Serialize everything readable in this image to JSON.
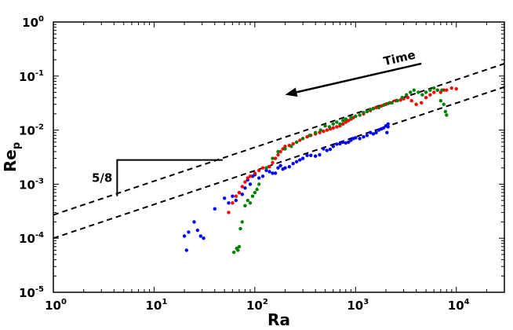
{
  "chart_data": {
    "type": "scatter",
    "title": "",
    "xlabel": "Ra",
    "ylabel_main": "Re",
    "ylabel_sub": "p",
    "xscale": "log",
    "yscale": "log",
    "xlim": [
      1,
      30000
    ],
    "ylim": [
      1e-05,
      1
    ],
    "grid": false,
    "x_ticks": [
      {
        "base": "10",
        "exp": "0",
        "value": 1
      },
      {
        "base": "10",
        "exp": "1",
        "value": 10
      },
      {
        "base": "10",
        "exp": "2",
        "value": 100
      },
      {
        "base": "10",
        "exp": "3",
        "value": 1000
      },
      {
        "base": "10",
        "exp": "4",
        "value": 10000
      }
    ],
    "y_ticks": [
      {
        "base": "10",
        "exp": "-5",
        "value": 1e-05
      },
      {
        "base": "10",
        "exp": "-4",
        "value": 0.0001
      },
      {
        "base": "10",
        "exp": "-3",
        "value": 0.001
      },
      {
        "base": "10",
        "exp": "-2",
        "value": 0.01
      },
      {
        "base": "10",
        "exp": "-1",
        "value": 0.1
      },
      {
        "base": "10",
        "exp": "0",
        "value": 1
      }
    ],
    "series": [
      {
        "color": "#0000ff",
        "points": [
          [
            21,
            6e-05
          ],
          [
            20,
            0.00011
          ],
          [
            22,
            0.00013
          ],
          [
            25,
            0.0002
          ],
          [
            27,
            0.00014
          ],
          [
            29,
            0.00011
          ],
          [
            31,
            0.0001
          ],
          [
            40,
            0.00035
          ],
          [
            50,
            0.00055
          ],
          [
            55,
            0.00045
          ],
          [
            60,
            0.0006
          ],
          [
            65,
            0.0005
          ],
          [
            70,
            0.0007
          ],
          [
            75,
            0.00065
          ],
          [
            80,
            0.00085
          ],
          [
            85,
            0.0012
          ],
          [
            90,
            0.001
          ],
          [
            95,
            0.0014
          ],
          [
            100,
            0.0015
          ],
          [
            110,
            0.0013
          ],
          [
            120,
            0.0014
          ],
          [
            130,
            0.0018
          ],
          [
            140,
            0.0017
          ],
          [
            150,
            0.0016
          ],
          [
            160,
            0.0016
          ],
          [
            170,
            0.002
          ],
          [
            180,
            0.0022
          ],
          [
            190,
            0.0019
          ],
          [
            200,
            0.002
          ],
          [
            220,
            0.0021
          ],
          [
            240,
            0.0024
          ],
          [
            260,
            0.0026
          ],
          [
            280,
            0.0028
          ],
          [
            300,
            0.003
          ],
          [
            330,
            0.0034
          ],
          [
            360,
            0.0034
          ],
          [
            400,
            0.0033
          ],
          [
            440,
            0.0035
          ],
          [
            480,
            0.0045
          ],
          [
            520,
            0.0042
          ],
          [
            560,
            0.0044
          ],
          [
            600,
            0.005
          ],
          [
            650,
            0.0055
          ],
          [
            700,
            0.0056
          ],
          [
            750,
            0.006
          ],
          [
            800,
            0.0058
          ],
          [
            850,
            0.006
          ],
          [
            900,
            0.0065
          ],
          [
            950,
            0.007
          ],
          [
            1000,
            0.0072
          ],
          [
            1100,
            0.007
          ],
          [
            1200,
            0.0075
          ],
          [
            1300,
            0.008
          ],
          [
            1400,
            0.009
          ],
          [
            1500,
            0.0085
          ],
          [
            1600,
            0.009
          ],
          [
            1700,
            0.01
          ],
          [
            1800,
            0.0105
          ],
          [
            1900,
            0.011
          ],
          [
            2000,
            0.012
          ],
          [
            2100,
            0.0115
          ],
          [
            2050,
            0.009
          ],
          [
            2100,
            0.013
          ]
        ]
      },
      {
        "color": "#ff0000",
        "points": [
          [
            55,
            0.0003
          ],
          [
            60,
            0.00045
          ],
          [
            65,
            0.0006
          ],
          [
            70,
            0.0007
          ],
          [
            75,
            0.0009
          ],
          [
            80,
            0.0011
          ],
          [
            85,
            0.0013
          ],
          [
            90,
            0.0014
          ],
          [
            100,
            0.0016
          ],
          [
            110,
            0.0018
          ],
          [
            120,
            0.002
          ],
          [
            130,
            0.002
          ],
          [
            140,
            0.0021
          ],
          [
            150,
            0.0025
          ],
          [
            160,
            0.003
          ],
          [
            170,
            0.0035
          ],
          [
            180,
            0.004
          ],
          [
            190,
            0.0045
          ],
          [
            200,
            0.005
          ],
          [
            220,
            0.0052
          ],
          [
            240,
            0.0056
          ],
          [
            260,
            0.006
          ],
          [
            280,
            0.0065
          ],
          [
            300,
            0.007
          ],
          [
            330,
            0.0075
          ],
          [
            360,
            0.008
          ],
          [
            400,
            0.0085
          ],
          [
            440,
            0.009
          ],
          [
            480,
            0.0095
          ],
          [
            520,
            0.01
          ],
          [
            560,
            0.0105
          ],
          [
            600,
            0.011
          ],
          [
            650,
            0.0115
          ],
          [
            700,
            0.012
          ],
          [
            750,
            0.013
          ],
          [
            800,
            0.014
          ],
          [
            850,
            0.015
          ],
          [
            900,
            0.016
          ],
          [
            950,
            0.017
          ],
          [
            1000,
            0.018
          ],
          [
            1100,
            0.019
          ],
          [
            1200,
            0.02
          ],
          [
            1300,
            0.022
          ],
          [
            1400,
            0.023
          ],
          [
            1500,
            0.025
          ],
          [
            1600,
            0.026
          ],
          [
            1800,
            0.028
          ],
          [
            2000,
            0.03
          ],
          [
            2200,
            0.032
          ],
          [
            2500,
            0.035
          ],
          [
            2800,
            0.036
          ],
          [
            3000,
            0.038
          ],
          [
            3300,
            0.04
          ],
          [
            3600,
            0.035
          ],
          [
            4000,
            0.03
          ],
          [
            4500,
            0.032
          ],
          [
            5000,
            0.04
          ],
          [
            5500,
            0.045
          ],
          [
            6000,
            0.05
          ],
          [
            6500,
            0.055
          ],
          [
            7000,
            0.05
          ],
          [
            7500,
            0.055
          ],
          [
            8000,
            0.055
          ],
          [
            9000,
            0.06
          ],
          [
            10000,
            0.058
          ]
        ]
      },
      {
        "color": "#008000",
        "points": [
          [
            62,
            5.5e-05
          ],
          [
            66,
            6.5e-05
          ],
          [
            70,
            7e-05
          ],
          [
            68,
            6e-05
          ],
          [
            72,
            0.00015
          ],
          [
            75,
            0.0002
          ],
          [
            80,
            0.0004
          ],
          [
            85,
            0.0005
          ],
          [
            90,
            0.00045
          ],
          [
            95,
            0.0006
          ],
          [
            100,
            0.0007
          ],
          [
            105,
            0.0008
          ],
          [
            110,
            0.001
          ],
          [
            130,
            0.002
          ],
          [
            150,
            0.003
          ],
          [
            170,
            0.004
          ],
          [
            200,
            0.0045
          ],
          [
            230,
            0.005
          ],
          [
            260,
            0.006
          ],
          [
            300,
            0.007
          ],
          [
            350,
            0.008
          ],
          [
            400,
            0.009
          ],
          [
            450,
            0.01
          ],
          [
            500,
            0.012
          ],
          [
            550,
            0.0115
          ],
          [
            600,
            0.013
          ],
          [
            650,
            0.014
          ],
          [
            700,
            0.013
          ],
          [
            750,
            0.015
          ],
          [
            800,
            0.016
          ],
          [
            900,
            0.017
          ],
          [
            1000,
            0.018
          ],
          [
            1100,
            0.019
          ],
          [
            1200,
            0.021
          ],
          [
            1300,
            0.022
          ],
          [
            1400,
            0.024
          ],
          [
            1500,
            0.025
          ],
          [
            1700,
            0.026
          ],
          [
            1900,
            0.029
          ],
          [
            2100,
            0.031
          ],
          [
            2300,
            0.032
          ],
          [
            2600,
            0.035
          ],
          [
            2900,
            0.04
          ],
          [
            3200,
            0.045
          ],
          [
            3500,
            0.05
          ],
          [
            3800,
            0.055
          ],
          [
            4200,
            0.05
          ],
          [
            4600,
            0.045
          ],
          [
            5000,
            0.05
          ],
          [
            5500,
            0.055
          ],
          [
            6000,
            0.06
          ],
          [
            6500,
            0.055
          ],
          [
            7000,
            0.035
          ],
          [
            7200,
            0.055
          ],
          [
            7500,
            0.03
          ],
          [
            7800,
            0.022
          ],
          [
            8000,
            0.019
          ]
        ]
      }
    ],
    "reference_lines": [
      {
        "style": "dashed",
        "slope": 0.625,
        "x": [
          1,
          30000
        ],
        "y_at_x1": 0.00027
      },
      {
        "style": "dashed",
        "slope": 0.625,
        "x": [
          1,
          30000
        ],
        "y_at_x1": 0.0001
      }
    ],
    "annotations": {
      "slope_label": "5/8",
      "slope_triangle": {
        "x_start": 4.3,
        "x_end": 48,
        "y_base": 0.0006,
        "y_top": 0.0028
      },
      "time_label": "Time",
      "time_arrow": {
        "from": [
          4500,
          0.17
        ],
        "to": [
          200,
          0.045
        ]
      }
    }
  }
}
